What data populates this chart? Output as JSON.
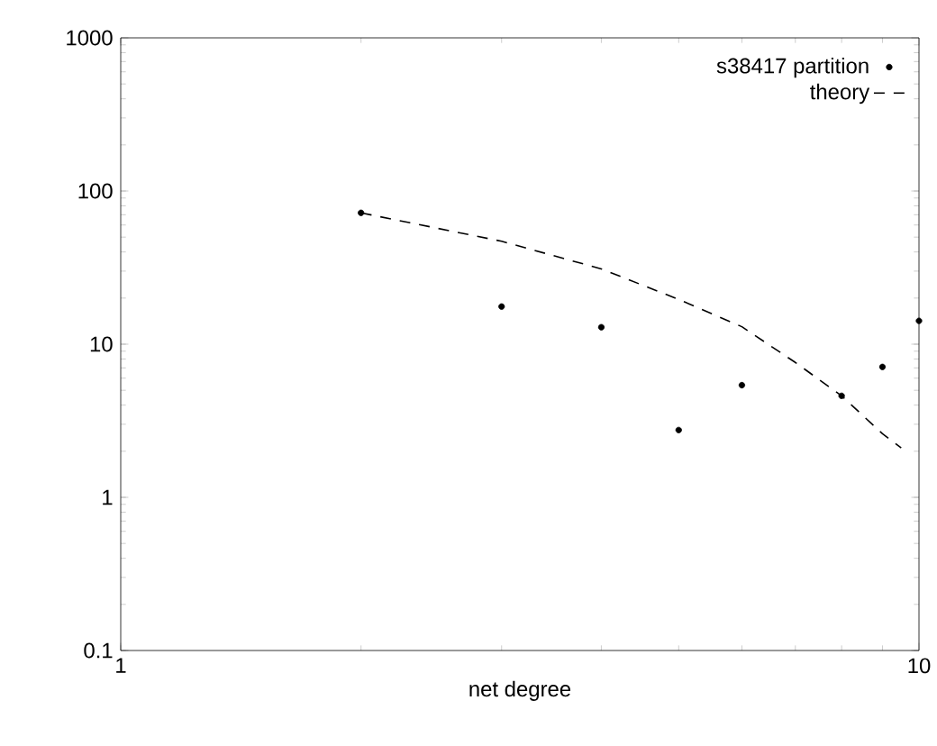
{
  "chart_data": {
    "type": "scatter",
    "xlabel": "net degree",
    "log": "xy",
    "xlim": [
      1,
      10
    ],
    "ylim": [
      0.1,
      1000
    ],
    "xticks": [
      1,
      10
    ],
    "yticks": [
      0.1,
      1,
      10,
      100,
      1000
    ],
    "legend": "top right",
    "grid": false,
    "series": [
      {
        "name": "s38417 partition",
        "color": "#000000",
        "marker": "circle",
        "x": [
          2,
          3,
          4,
          5,
          6,
          8,
          9,
          10
        ],
        "values": [
          72,
          17.6,
          12.9,
          2.75,
          5.4,
          4.6,
          7.1,
          14.2
        ]
      },
      {
        "name": "theory",
        "type": "line",
        "color": "#000000",
        "line_style": "dashed",
        "marker": "none",
        "x": [
          2,
          3,
          4,
          5,
          6,
          7,
          8,
          9,
          9.5
        ],
        "values": [
          72,
          47,
          31,
          19.6,
          13,
          7.6,
          4.6,
          2.6,
          2.1
        ]
      }
    ]
  }
}
